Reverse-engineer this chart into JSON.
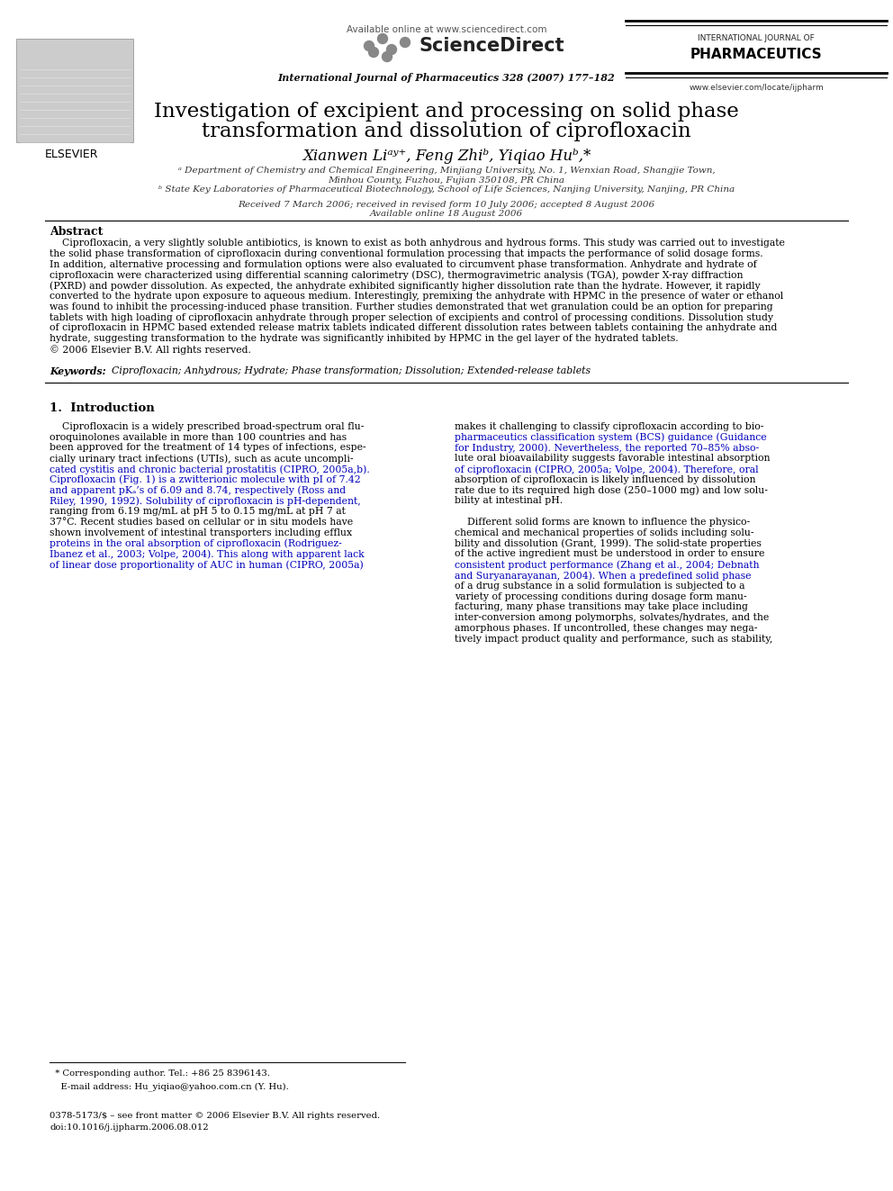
{
  "background_color": "#ffffff",
  "page_width": 9.92,
  "page_height": 13.23,
  "dpi": 100,
  "header": {
    "available_online": "Available online at www.sciencedirect.com",
    "sciencedirect": "ScienceDirect",
    "journal_name": "International Journal of Pharmaceutics 328 (2007) 177–182",
    "intl_journal_label": "INTERNATIONAL JOURNAL OF",
    "pharmaceutics_label": "PHARMACEUTICS",
    "elsevier_label": "ELSEVIER",
    "website": "www.elsevier.com/locate/ijpharm"
  },
  "title_line1": "Investigation of excipient and processing on solid phase",
  "title_line2": "transformation and dissolution of ciprofloxacin",
  "authors_line": "Xianwen Liᵃʸ⁺, Feng Zhiᵇ, Yiqiao Huᵇ,*",
  "affil_a_line1": "ᵃ Department of Chemistry and Chemical Engineering, Minjiang University, No. 1, Wenxian Road, Shangjie Town,",
  "affil_a_line2": "Minhou County, Fuzhou, Fujian 350108, PR China",
  "affil_b": "ᵇ State Key Laboratories of Pharmaceutical Biotechnology, School of Life Sciences, Nanjing University, Nanjing, PR China",
  "received_line1": "Received 7 March 2006; received in revised form 10 July 2006; accepted 8 August 2006",
  "received_line2": "Available online 18 August 2006",
  "abstract_title": "Abstract",
  "abstract_body": "    Ciprofloxacin, a very slightly soluble antibiotics, is known to exist as both anhydrous and hydrous forms. This study was carried out to investigate\nthe solid phase transformation of ciprofloxacin during conventional formulation processing that impacts the performance of solid dosage forms.\nIn addition, alternative processing and formulation options were also evaluated to circumvent phase transformation. Anhydrate and hydrate of\nciprofloxacin were characterized using differential scanning calorimetry (DSC), thermogravimetric analysis (TGA), powder X-ray diffraction\n(PXRD) and powder dissolution. As expected, the anhydrate exhibited significantly higher dissolution rate than the hydrate. However, it rapidly\nconverted to the hydrate upon exposure to aqueous medium. Interestingly, premixing the anhydrate with HPMC in the presence of water or ethanol\nwas found to inhibit the processing-induced phase transition. Further studies demonstrated that wet granulation could be an option for preparing\ntablets with high loading of ciprofloxacin anhydrate through proper selection of excipients and control of processing conditions. Dissolution study\nof ciprofloxacin in HPMC based extended release matrix tablets indicated different dissolution rates between tablets containing the anhydrate and\nhydrate, suggesting transformation to the hydrate was significantly inhibited by HPMC in the gel layer of the hydrated tablets.\n© 2006 Elsevier B.V. All rights reserved.",
  "keywords_label": "Keywords:",
  "keywords_body": "  Ciprofloxacin; Anhydrous; Hydrate; Phase transformation; Dissolution; Extended-release tablets",
  "sec1_title": "1.  Introduction",
  "col1_lines": [
    "    Ciprofloxacin is a widely prescribed broad-spectrum oral flu-",
    "oroquinolones available in more than 100 countries and has",
    "been approved for the treatment of 14 types of infections, espe-",
    "cially urinary tract infections (UTIs), such as acute uncompli-",
    "cated cystitis and chronic bacterial prostatitis (CIPRO, 2005a,b).",
    "Ciprofloxacin (Fig. 1) is a zwitterionic molecule with pI of 7.42",
    "and apparent pKₐ’s of 6.09 and 8.74, respectively (Ross and",
    "Riley, 1990, 1992). Solubility of ciprofloxacin is pH-dependent,",
    "ranging from 6.19 mg/mL at pH 5 to 0.15 mg/mL at pH 7 at",
    "37°C. Recent studies based on cellular or in situ models have",
    "shown involvement of intestinal transporters including efflux",
    "proteins in the oral absorption of ciprofloxacin (Rodriguez-",
    "Ibanez et al., 2003; Volpe, 2004). This along with apparent lack",
    "of linear dose proportionality of AUC in human (CIPRO, 2005a)"
  ],
  "col1_blue_indices": [
    4,
    5,
    6,
    7,
    11,
    12,
    13
  ],
  "col2_lines": [
    "makes it challenging to classify ciprofloxacin according to bio-",
    "pharmaceutics classification system (BCS) guidance (Guidance",
    "for Industry, 2000). Nevertheless, the reported 70–85% abso-",
    "lute oral bioavailability suggests favorable intestinal absorption",
    "of ciprofloxacin (CIPRO, 2005a; Volpe, 2004). Therefore, oral",
    "absorption of ciprofloxacin is likely influenced by dissolution",
    "rate due to its required high dose (250–1000 mg) and low solu-",
    "bility at intestinal pH.",
    "",
    "    Different solid forms are known to influence the physico-",
    "chemical and mechanical properties of solids including solu-",
    "bility and dissolution (Grant, 1999). The solid-state properties",
    "of the active ingredient must be understood in order to ensure",
    "consistent product performance (Zhang et al., 2004; Debnath",
    "and Suryanarayanan, 2004). When a predefined solid phase",
    "of a drug substance in a solid formulation is subjected to a",
    "variety of processing conditions during dosage form manu-",
    "facturing, many phase transitions may take place including",
    "inter-conversion among polymorphs, solvates/hydrates, and the",
    "amorphous phases. If uncontrolled, these changes may nega-",
    "tively impact product quality and performance, such as stability,"
  ],
  "col2_blue_indices": [
    1,
    2,
    4,
    13,
    14
  ],
  "footnote_line1": "  * Corresponding author. Tel.: +86 25 8396143.",
  "footnote_line2": "    E-mail address: Hu_yiqiao@yahoo.com.cn (Y. Hu).",
  "footer_line1": "0378-5173/$ – see front matter © 2006 Elsevier B.V. All rights reserved.",
  "footer_line2": "doi:10.1016/j.ijpharm.2006.08.012"
}
